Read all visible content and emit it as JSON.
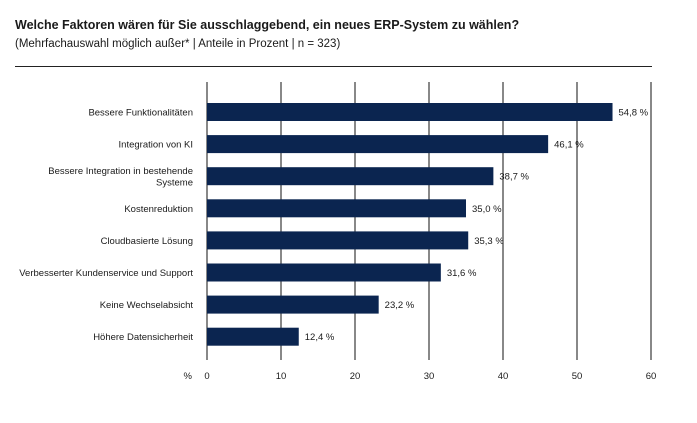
{
  "header": {
    "title": "Welche Faktoren wären für Sie ausschlaggebend, ein neues ERP-System zu wählen?",
    "subtitle": "(Mehrfachauswahl möglich außer* | Anteile in Prozent | n = 323)"
  },
  "chart_data": {
    "type": "bar",
    "orientation": "horizontal",
    "categories": [
      "Bessere Funktionalitäten",
      "Integration von KI",
      "Bessere Integration in bestehende Systeme",
      "Kostenreduktion",
      "Cloudbasierte Lösung",
      "Verbesserter Kundenservice und Support",
      "Keine Wechselabsicht",
      "Höhere Datensicherheit"
    ],
    "category_lines": [
      [
        "Bessere Funktionalitäten"
      ],
      [
        "Integration von KI"
      ],
      [
        "Bessere Integration in bestehende",
        "Systeme"
      ],
      [
        "Kostenreduktion"
      ],
      [
        "Cloudbasierte Lösung"
      ],
      [
        "Verbesserter Kundenservice und Support"
      ],
      [
        "Keine Wechselabsicht"
      ],
      [
        "Höhere Datensicherheit"
      ]
    ],
    "values": [
      54.8,
      46.1,
      38.7,
      35.0,
      35.3,
      31.6,
      23.2,
      12.4
    ],
    "value_labels": [
      "54,8 %",
      "46,1 %",
      "38,7 %",
      "35,0 %",
      "35,3 %",
      "31,6 %",
      "23,2 %",
      "12,4 %"
    ],
    "xlim": [
      0,
      60
    ],
    "xticks": [
      0,
      10,
      20,
      30,
      40,
      50,
      60
    ],
    "xunit": "%",
    "grid": "vertical",
    "bar_color": "#0b2550"
  }
}
